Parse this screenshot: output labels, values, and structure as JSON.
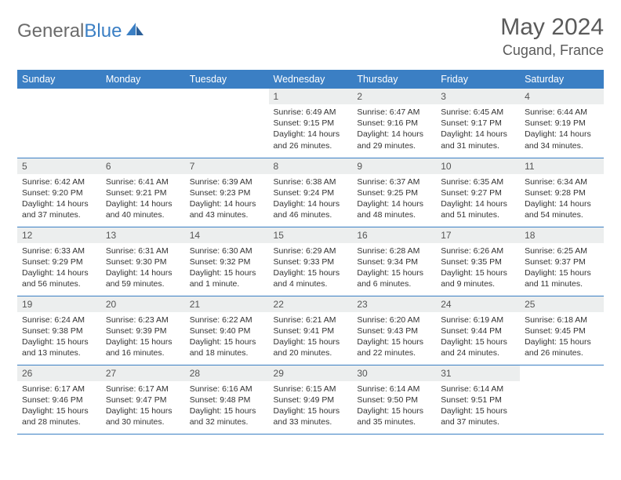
{
  "brand": {
    "part1": "General",
    "part2": "Blue"
  },
  "title": "May 2024",
  "location": "Cugand, France",
  "colors": {
    "header_bg": "#3b7fc4",
    "header_text": "#ffffff",
    "daynum_bg": "#eceeee",
    "border": "#3b7fc4",
    "text": "#333333",
    "logo_gray": "#6b6b6b",
    "logo_blue": "#3b7fc4"
  },
  "weekdays": [
    "Sunday",
    "Monday",
    "Tuesday",
    "Wednesday",
    "Thursday",
    "Friday",
    "Saturday"
  ],
  "weeks": [
    [
      null,
      null,
      null,
      {
        "n": "1",
        "sr": "6:49 AM",
        "ss": "9:15 PM",
        "dl": "14 hours and 26 minutes."
      },
      {
        "n": "2",
        "sr": "6:47 AM",
        "ss": "9:16 PM",
        "dl": "14 hours and 29 minutes."
      },
      {
        "n": "3",
        "sr": "6:45 AM",
        "ss": "9:17 PM",
        "dl": "14 hours and 31 minutes."
      },
      {
        "n": "4",
        "sr": "6:44 AM",
        "ss": "9:19 PM",
        "dl": "14 hours and 34 minutes."
      }
    ],
    [
      {
        "n": "5",
        "sr": "6:42 AM",
        "ss": "9:20 PM",
        "dl": "14 hours and 37 minutes."
      },
      {
        "n": "6",
        "sr": "6:41 AM",
        "ss": "9:21 PM",
        "dl": "14 hours and 40 minutes."
      },
      {
        "n": "7",
        "sr": "6:39 AM",
        "ss": "9:23 PM",
        "dl": "14 hours and 43 minutes."
      },
      {
        "n": "8",
        "sr": "6:38 AM",
        "ss": "9:24 PM",
        "dl": "14 hours and 46 minutes."
      },
      {
        "n": "9",
        "sr": "6:37 AM",
        "ss": "9:25 PM",
        "dl": "14 hours and 48 minutes."
      },
      {
        "n": "10",
        "sr": "6:35 AM",
        "ss": "9:27 PM",
        "dl": "14 hours and 51 minutes."
      },
      {
        "n": "11",
        "sr": "6:34 AM",
        "ss": "9:28 PM",
        "dl": "14 hours and 54 minutes."
      }
    ],
    [
      {
        "n": "12",
        "sr": "6:33 AM",
        "ss": "9:29 PM",
        "dl": "14 hours and 56 minutes."
      },
      {
        "n": "13",
        "sr": "6:31 AM",
        "ss": "9:30 PM",
        "dl": "14 hours and 59 minutes."
      },
      {
        "n": "14",
        "sr": "6:30 AM",
        "ss": "9:32 PM",
        "dl": "15 hours and 1 minute."
      },
      {
        "n": "15",
        "sr": "6:29 AM",
        "ss": "9:33 PM",
        "dl": "15 hours and 4 minutes."
      },
      {
        "n": "16",
        "sr": "6:28 AM",
        "ss": "9:34 PM",
        "dl": "15 hours and 6 minutes."
      },
      {
        "n": "17",
        "sr": "6:26 AM",
        "ss": "9:35 PM",
        "dl": "15 hours and 9 minutes."
      },
      {
        "n": "18",
        "sr": "6:25 AM",
        "ss": "9:37 PM",
        "dl": "15 hours and 11 minutes."
      }
    ],
    [
      {
        "n": "19",
        "sr": "6:24 AM",
        "ss": "9:38 PM",
        "dl": "15 hours and 13 minutes."
      },
      {
        "n": "20",
        "sr": "6:23 AM",
        "ss": "9:39 PM",
        "dl": "15 hours and 16 minutes."
      },
      {
        "n": "21",
        "sr": "6:22 AM",
        "ss": "9:40 PM",
        "dl": "15 hours and 18 minutes."
      },
      {
        "n": "22",
        "sr": "6:21 AM",
        "ss": "9:41 PM",
        "dl": "15 hours and 20 minutes."
      },
      {
        "n": "23",
        "sr": "6:20 AM",
        "ss": "9:43 PM",
        "dl": "15 hours and 22 minutes."
      },
      {
        "n": "24",
        "sr": "6:19 AM",
        "ss": "9:44 PM",
        "dl": "15 hours and 24 minutes."
      },
      {
        "n": "25",
        "sr": "6:18 AM",
        "ss": "9:45 PM",
        "dl": "15 hours and 26 minutes."
      }
    ],
    [
      {
        "n": "26",
        "sr": "6:17 AM",
        "ss": "9:46 PM",
        "dl": "15 hours and 28 minutes."
      },
      {
        "n": "27",
        "sr": "6:17 AM",
        "ss": "9:47 PM",
        "dl": "15 hours and 30 minutes."
      },
      {
        "n": "28",
        "sr": "6:16 AM",
        "ss": "9:48 PM",
        "dl": "15 hours and 32 minutes."
      },
      {
        "n": "29",
        "sr": "6:15 AM",
        "ss": "9:49 PM",
        "dl": "15 hours and 33 minutes."
      },
      {
        "n": "30",
        "sr": "6:14 AM",
        "ss": "9:50 PM",
        "dl": "15 hours and 35 minutes."
      },
      {
        "n": "31",
        "sr": "6:14 AM",
        "ss": "9:51 PM",
        "dl": "15 hours and 37 minutes."
      },
      null
    ]
  ],
  "labels": {
    "sunrise": "Sunrise:",
    "sunset": "Sunset:",
    "daylight": "Daylight:"
  }
}
